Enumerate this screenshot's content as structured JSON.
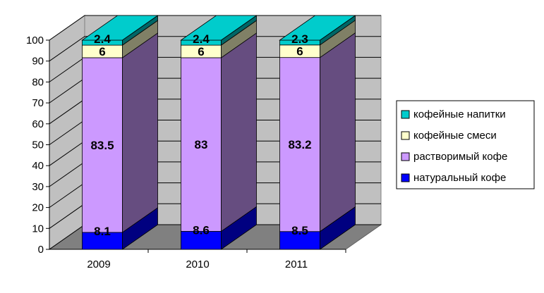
{
  "chart_data": {
    "type": "bar",
    "stacked": true,
    "three_d": true,
    "categories": [
      "2009",
      "2010",
      "2011"
    ],
    "series": [
      {
        "name": "натуральный кофе",
        "values": [
          8.1,
          8.6,
          8.5
        ],
        "color": "#0000ff",
        "labels": [
          "8.1",
          "8.6",
          "8.5"
        ]
      },
      {
        "name": "растворимый кофе",
        "values": [
          83.5,
          83,
          83.2
        ],
        "color": "#cc99ff",
        "labels": [
          "83.5",
          "83",
          "83.2"
        ]
      },
      {
        "name": "кофейные смеси",
        "values": [
          6,
          6,
          6
        ],
        "color": "#ffffcc",
        "labels": [
          "6",
          "6",
          "6"
        ]
      },
      {
        "name": "кофейные напитки",
        "values": [
          2.4,
          2.4,
          2.3
        ],
        "color": "#00cccc",
        "labels": [
          "2.4",
          "2.4",
          "2.3"
        ]
      }
    ],
    "ylim": [
      0,
      100
    ],
    "yticks": [
      "0",
      "10",
      "20",
      "30",
      "40",
      "50",
      "60",
      "70",
      "80",
      "90",
      "100"
    ],
    "grid": true,
    "legend_position": "right",
    "legend_order": [
      "кофейные напитки",
      "кофейные смеси",
      "растворимый кофе",
      "натуральный кофе"
    ],
    "wall_color": "#c0c0c0",
    "floor_color": "#808080"
  }
}
